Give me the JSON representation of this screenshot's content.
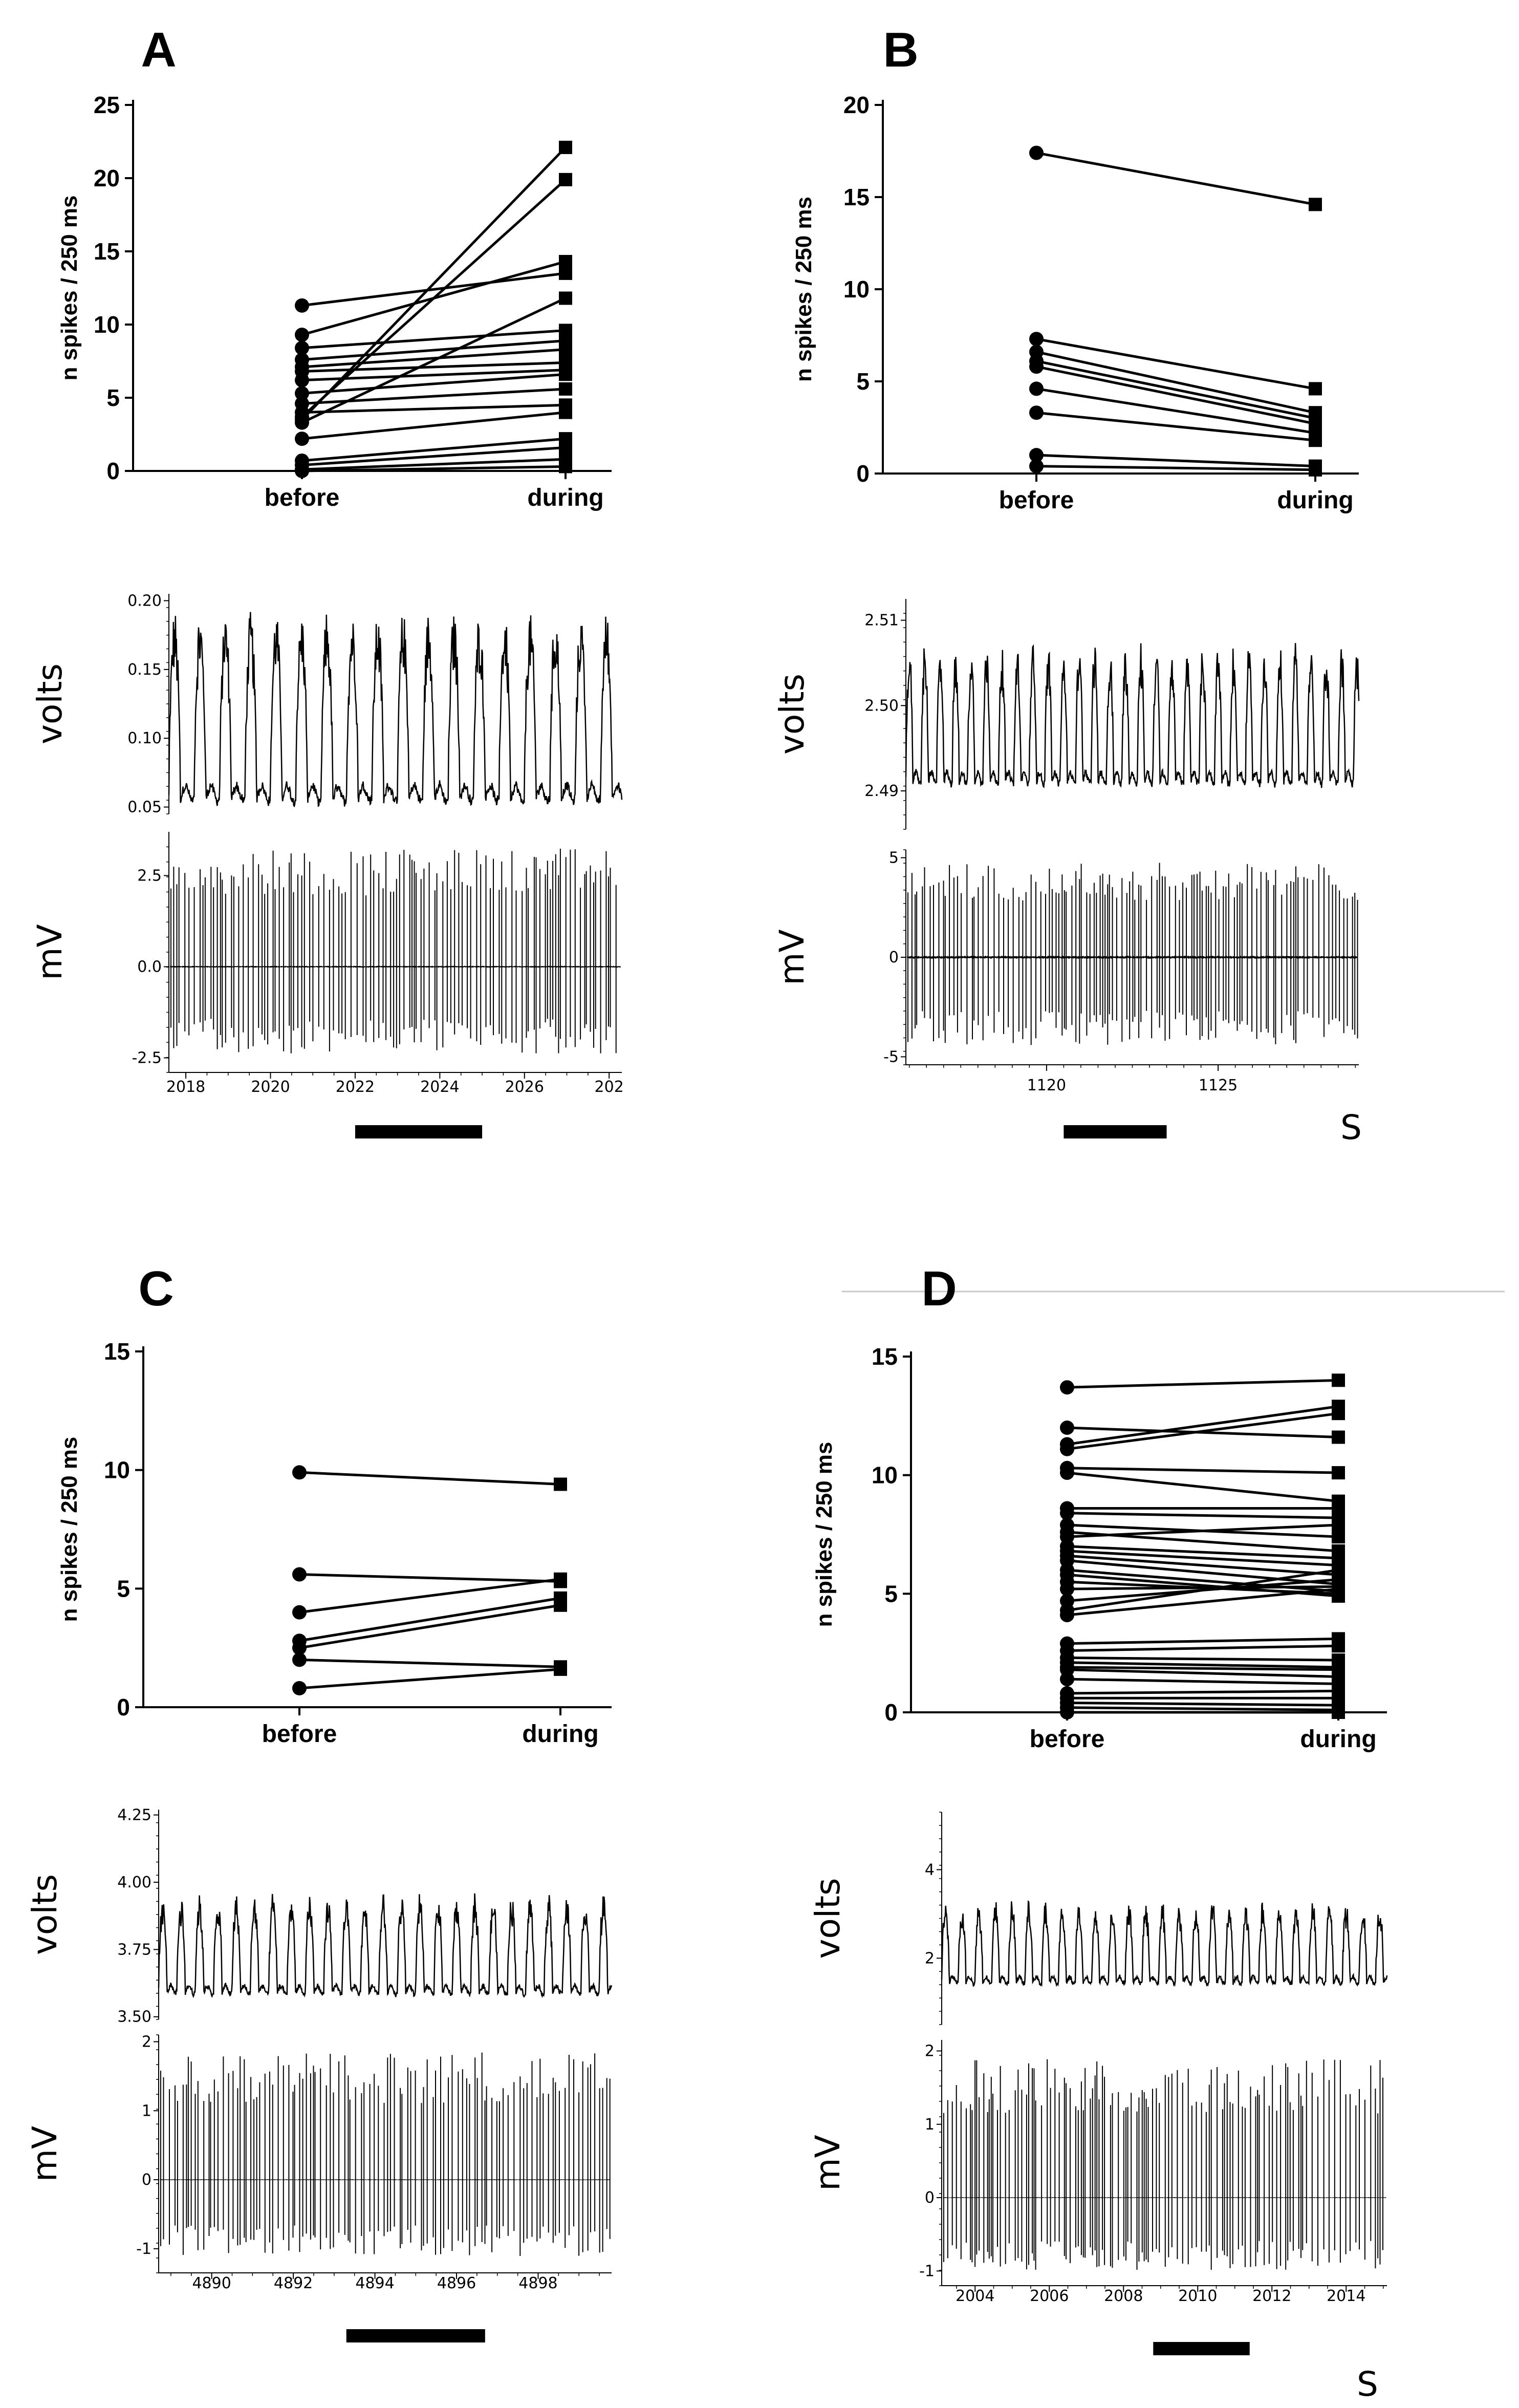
{
  "figure": {
    "unit_label_s": "S"
  },
  "chart_data": [
    {
      "id": "A",
      "type": "line",
      "panel_label": "A",
      "ylabel": "n spikes / 250 ms",
      "categories": [
        "before",
        "during"
      ],
      "ylim": [
        0,
        25
      ],
      "yticks": [
        0,
        5,
        10,
        15,
        20,
        25
      ],
      "pairs": [
        [
          11.3,
          13.5
        ],
        [
          9.3,
          14.3
        ],
        [
          8.4,
          9.6
        ],
        [
          7.6,
          8.9
        ],
        [
          7.1,
          8.3
        ],
        [
          6.8,
          7.4
        ],
        [
          6.2,
          6.9
        ],
        [
          5.3,
          6.6
        ],
        [
          4.6,
          5.6
        ],
        [
          4.0,
          4.5
        ],
        [
          3.7,
          19.9
        ],
        [
          3.5,
          22.1
        ],
        [
          3.3,
          11.8
        ],
        [
          2.2,
          4.0
        ],
        [
          0.7,
          2.2
        ],
        [
          0.4,
          1.6
        ],
        [
          0.1,
          0.8
        ],
        [
          0.0,
          0.3
        ]
      ],
      "trace": {
        "top": {
          "ylabel": "volts",
          "ylim": [
            0.045,
            0.205
          ],
          "yticks": [
            "0.20",
            "0.15",
            "0.10",
            "0.05"
          ],
          "period": 0.6,
          "low": 0.06,
          "high": 0.17,
          "shape": "respA"
        },
        "bottom": {
          "ylabel": "mV",
          "ylim": [
            -2.9,
            3.7
          ],
          "yticks": [
            "2.5",
            "0.0",
            "-2.5"
          ]
        },
        "xlim": [
          2017.6,
          2028.3
        ],
        "xticks": [
          "2018",
          "2020",
          "2022",
          "2024",
          "2026",
          "202"
        ],
        "bar": [
          2022.0,
          2025.0
        ]
      }
    },
    {
      "id": "B",
      "type": "line",
      "panel_label": "B",
      "ylabel": "n spikes / 250 ms",
      "categories": [
        "before",
        "during"
      ],
      "ylim": [
        0,
        20
      ],
      "yticks": [
        0,
        5,
        10,
        15,
        20
      ],
      "pairs": [
        [
          17.4,
          14.6
        ],
        [
          7.3,
          4.6
        ],
        [
          6.6,
          3.3
        ],
        [
          6.1,
          3.0
        ],
        [
          5.8,
          2.7
        ],
        [
          4.6,
          2.2
        ],
        [
          3.3,
          1.8
        ],
        [
          1.0,
          0.4
        ],
        [
          0.4,
          0.2
        ]
      ],
      "trace": {
        "top": {
          "ylabel": "volts",
          "ylim": [
            2.4855,
            2.5125
          ],
          "yticks": [
            "2.51",
            "2.50",
            "2.49"
          ],
          "period": 0.45,
          "low": 2.4915,
          "high": 2.5045,
          "shape": "respB"
        },
        "bottom": {
          "ylabel": "mV",
          "ylim": [
            -5.4,
            5.4
          ],
          "yticks": [
            "5",
            "0",
            "-5"
          ]
        },
        "xlim": [
          1115.9,
          1129.1
        ],
        "xticks": [
          "1120",
          "1125"
        ],
        "bar": [
          1120.5,
          1123.5
        ],
        "unit": "S"
      }
    },
    {
      "id": "C",
      "type": "line",
      "panel_label": "C",
      "ylabel": "n spikes / 250 ms",
      "categories": [
        "before",
        "during"
      ],
      "ylim": [
        0,
        15
      ],
      "yticks": [
        0,
        5,
        10,
        15
      ],
      "pairs": [
        [
          9.9,
          9.4
        ],
        [
          5.6,
          5.3
        ],
        [
          4.0,
          5.4
        ],
        [
          2.8,
          4.6
        ],
        [
          2.5,
          4.3
        ],
        [
          2.0,
          1.7
        ],
        [
          0.8,
          1.6
        ]
      ],
      "trace": {
        "top": {
          "ylabel": "volts",
          "ylim": [
            3.49,
            4.27
          ],
          "yticks": [
            "4.25",
            "4.00",
            "3.75",
            "3.50"
          ],
          "period": 0.45,
          "low": 3.6,
          "high": 3.9,
          "shape": "respC"
        },
        "bottom": {
          "ylabel": "mV",
          "ylim": [
            -1.35,
            2.1
          ],
          "yticks": [
            "2",
            "1",
            "0",
            "-1"
          ]
        },
        "xlim": [
          4888.7,
          4899.8
        ],
        "xticks": [
          "4890",
          "4892",
          "4894",
          "4896",
          "4898"
        ],
        "bar": [
          4893.3,
          4896.7
        ]
      }
    },
    {
      "id": "D",
      "type": "line",
      "panel_label": "D",
      "ylabel": "n spikes / 250 ms",
      "categories": [
        "before",
        "during"
      ],
      "ylim": [
        0,
        15
      ],
      "yticks": [
        0,
        5,
        10,
        15
      ],
      "pairs": [
        [
          13.7,
          14.0
        ],
        [
          12.0,
          11.6
        ],
        [
          11.3,
          12.9
        ],
        [
          11.1,
          12.6
        ],
        [
          10.3,
          10.1
        ],
        [
          10.1,
          8.9
        ],
        [
          8.6,
          8.6
        ],
        [
          8.4,
          8.2
        ],
        [
          7.9,
          7.4
        ],
        [
          7.6,
          6.8
        ],
        [
          7.4,
          7.9
        ],
        [
          7.0,
          6.5
        ],
        [
          6.8,
          6.2
        ],
        [
          6.6,
          5.8
        ],
        [
          6.4,
          5.4
        ],
        [
          6.0,
          5.1
        ],
        [
          5.8,
          4.9
        ],
        [
          5.5,
          5.0
        ],
        [
          5.2,
          5.3
        ],
        [
          4.7,
          5.6
        ],
        [
          4.3,
          6.0
        ],
        [
          4.1,
          5.2
        ],
        [
          2.9,
          3.1
        ],
        [
          2.6,
          2.8
        ],
        [
          2.3,
          2.2
        ],
        [
          2.1,
          1.9
        ],
        [
          1.9,
          1.8
        ],
        [
          1.8,
          1.5
        ],
        [
          1.4,
          1.2
        ],
        [
          0.8,
          0.9
        ],
        [
          0.6,
          0.6
        ],
        [
          0.4,
          0.3
        ],
        [
          0.2,
          0.1
        ],
        [
          0.0,
          0.0
        ]
      ],
      "trace": {
        "top": {
          "ylabel": "volts",
          "ylim": [
            0.5,
            5.3
          ],
          "yticks": [
            "4",
            "2"
          ],
          "period": 0.45,
          "low": 1.5,
          "high": 3.0,
          "shape": "respD"
        },
        "bottom": {
          "ylabel": "mV",
          "ylim": [
            -1.2,
            2.15
          ],
          "yticks": [
            "2",
            "1",
            "0",
            "-1"
          ]
        },
        "xlim": [
          2003.1,
          2015.1
        ],
        "xticks": [
          "2004",
          "2006",
          "2008",
          "2010",
          "2012",
          "2014"
        ],
        "bar": [
          2008.8,
          2011.4
        ],
        "unit": "S"
      }
    }
  ]
}
